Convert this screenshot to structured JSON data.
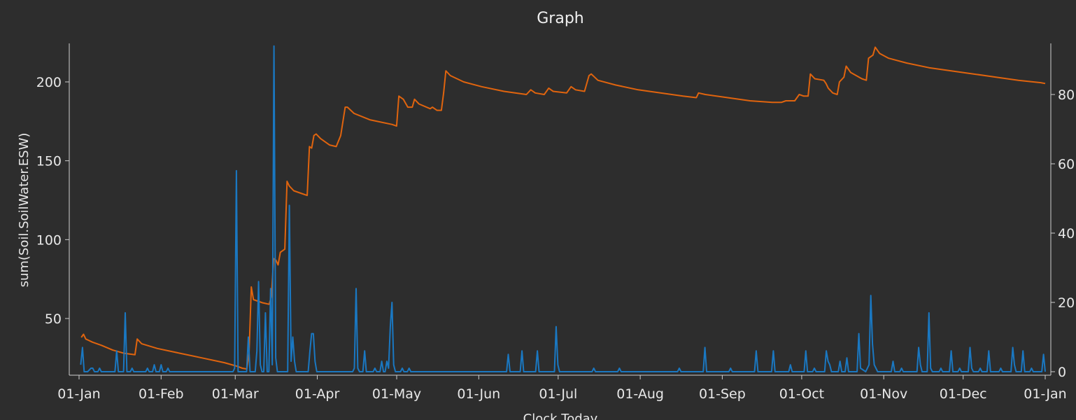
{
  "window": {
    "title": "Graph"
  },
  "chart_data": {
    "type": "line",
    "title": "Graph",
    "xlabel": "Clock.Today",
    "ylabel": "sum(Soil.SoilWater.ESW)",
    "y2label": "",
    "xlim": [
      "01-Jan",
      "01-Jan"
    ],
    "ylim": [
      15,
      225
    ],
    "y2lim": [
      0,
      95
    ],
    "x_tick_labels": [
      "01-Jan",
      "01-Feb",
      "01-Mar",
      "01-Apr",
      "01-May",
      "01-Jun",
      "01-Jul",
      "01-Aug",
      "01-Sep",
      "01-Oct",
      "01-Nov",
      "01-Dec",
      "01-Jan"
    ],
    "y_ticks": [
      50,
      100,
      150,
      200
    ],
    "y2_ticks": [
      0,
      20,
      40,
      60,
      80
    ],
    "grid": false,
    "legend": "none",
    "colors": {
      "esw": "#e0640e",
      "rain": "#1a78c2"
    },
    "series": [
      {
        "axis": "left",
        "color": "#e0640e",
        "points": [
          [
            1,
            38
          ],
          [
            2,
            40
          ],
          [
            3,
            37
          ],
          [
            6,
            35
          ],
          [
            10,
            33
          ],
          [
            15,
            30
          ],
          [
            20,
            28
          ],
          [
            25,
            27
          ],
          [
            26,
            37
          ],
          [
            28,
            34
          ],
          [
            35,
            31
          ],
          [
            45,
            28
          ],
          [
            55,
            25
          ],
          [
            65,
            22
          ],
          [
            70,
            20
          ],
          [
            73,
            18.5
          ],
          [
            75,
            18
          ],
          [
            76,
            28
          ],
          [
            77,
            70
          ],
          [
            78,
            62
          ],
          [
            82,
            60
          ],
          [
            85,
            59
          ],
          [
            86,
            64
          ],
          [
            87,
            88
          ],
          [
            88,
            87
          ],
          [
            89,
            84
          ],
          [
            90,
            92
          ],
          [
            92,
            94
          ],
          [
            93,
            137
          ],
          [
            94,
            134
          ],
          [
            96,
            131
          ],
          [
            100,
            129
          ],
          [
            102,
            128
          ],
          [
            103,
            159
          ],
          [
            104,
            158
          ],
          [
            105,
            166
          ],
          [
            106,
            167
          ],
          [
            108,
            164
          ],
          [
            112,
            160
          ],
          [
            115,
            159
          ],
          [
            117,
            166
          ],
          [
            119,
            184
          ],
          [
            120,
            184
          ],
          [
            123,
            180
          ],
          [
            130,
            176
          ],
          [
            140,
            173
          ],
          [
            142,
            172
          ],
          [
            143,
            191
          ],
          [
            145,
            189
          ],
          [
            147,
            184
          ],
          [
            149,
            184
          ],
          [
            150,
            189
          ],
          [
            152,
            186
          ],
          [
            157,
            183
          ],
          [
            158,
            184
          ],
          [
            160,
            182
          ],
          [
            162,
            182
          ],
          [
            163,
            193
          ],
          [
            164,
            207
          ],
          [
            166,
            204
          ],
          [
            172,
            200
          ],
          [
            180,
            197
          ],
          [
            190,
            194
          ],
          [
            200,
            192
          ],
          [
            202,
            195
          ],
          [
            204,
            193
          ],
          [
            208,
            192
          ],
          [
            210,
            196
          ],
          [
            212,
            194
          ],
          [
            218,
            193
          ],
          [
            220,
            197
          ],
          [
            222,
            195
          ],
          [
            226,
            194
          ],
          [
            228,
            204
          ],
          [
            229,
            205
          ],
          [
            232,
            201
          ],
          [
            240,
            198
          ],
          [
            250,
            195
          ],
          [
            260,
            193
          ],
          [
            270,
            191
          ],
          [
            276,
            190
          ],
          [
            277,
            193
          ],
          [
            280,
            192
          ],
          [
            290,
            190
          ],
          [
            300,
            188
          ],
          [
            310,
            187
          ],
          [
            314,
            187
          ],
          [
            316,
            188
          ],
          [
            320,
            188
          ],
          [
            322,
            192
          ],
          [
            324,
            191
          ],
          [
            326,
            191
          ],
          [
            327,
            205
          ],
          [
            329,
            202
          ],
          [
            333,
            201
          ],
          [
            334,
            199
          ],
          [
            335,
            196
          ],
          [
            337,
            193
          ],
          [
            339,
            192
          ],
          [
            340,
            200
          ],
          [
            342,
            203
          ],
          [
            343,
            210
          ],
          [
            345,
            206
          ],
          [
            350,
            202
          ],
          [
            352,
            201
          ],
          [
            353,
            215
          ],
          [
            355,
            217
          ],
          [
            356,
            222
          ],
          [
            358,
            218
          ],
          [
            362,
            215
          ],
          [
            370,
            212
          ],
          [
            380,
            209
          ],
          [
            390,
            207
          ],
          [
            400,
            205
          ],
          [
            410,
            203
          ],
          [
            420,
            201
          ],
          [
            430,
            199.5
          ],
          [
            432,
            199
          ]
        ]
      },
      {
        "axis": "right",
        "color": "#1a78c2",
        "points": [
          [
            1,
            2
          ],
          [
            2,
            7
          ],
          [
            3,
            0
          ],
          [
            5,
            0
          ],
          [
            7,
            1
          ],
          [
            8,
            1
          ],
          [
            9,
            0
          ],
          [
            11,
            0
          ],
          [
            12,
            1
          ],
          [
            13,
            0
          ],
          [
            21,
            0
          ],
          [
            22,
            6
          ],
          [
            23,
            0
          ],
          [
            26,
            0
          ],
          [
            27,
            17
          ],
          [
            28,
            0
          ],
          [
            30,
            0
          ],
          [
            31,
            1
          ],
          [
            32,
            0
          ],
          [
            39,
            0
          ],
          [
            40,
            1
          ],
          [
            41,
            0
          ],
          [
            43,
            0
          ],
          [
            44,
            2
          ],
          [
            45,
            0
          ],
          [
            47,
            0
          ],
          [
            48,
            2
          ],
          [
            49,
            0
          ],
          [
            51,
            0
          ],
          [
            52,
            1
          ],
          [
            53,
            0
          ],
          [
            90,
            0
          ],
          [
            91,
            1
          ],
          [
            92,
            58
          ],
          [
            93,
            0
          ],
          [
            98,
            0
          ],
          [
            99,
            10
          ],
          [
            100,
            0
          ],
          [
            103,
            0
          ],
          [
            104,
            6
          ],
          [
            105,
            26
          ],
          [
            106,
            2
          ],
          [
            107,
            0
          ],
          [
            108,
            0
          ],
          [
            109,
            17
          ],
          [
            110,
            0
          ],
          [
            111,
            0
          ],
          [
            112,
            24
          ],
          [
            113,
            2
          ],
          [
            114,
            94
          ],
          [
            115,
            4
          ],
          [
            116,
            0
          ],
          [
            122,
            0
          ],
          [
            123,
            48
          ],
          [
            124,
            3
          ],
          [
            125,
            10
          ],
          [
            126,
            3
          ],
          [
            127,
            0
          ],
          [
            134,
            0
          ],
          [
            135,
            6
          ],
          [
            136,
            11
          ],
          [
            137,
            11
          ],
          [
            138,
            3
          ],
          [
            139,
            0
          ],
          [
            160,
            0
          ],
          [
            161,
            1
          ],
          [
            162,
            24
          ],
          [
            163,
            1
          ],
          [
            164,
            0
          ],
          [
            166,
            0
          ],
          [
            167,
            6
          ],
          [
            168,
            0
          ],
          [
            172,
            0
          ],
          [
            173,
            1
          ],
          [
            174,
            0
          ],
          [
            176,
            0
          ],
          [
            177,
            3
          ],
          [
            178,
            0
          ],
          [
            179,
            0
          ],
          [
            180,
            3
          ],
          [
            181,
            1
          ],
          [
            182,
            13
          ],
          [
            183,
            20
          ],
          [
            184,
            2
          ],
          [
            185,
            0
          ],
          [
            188,
            0
          ],
          [
            189,
            1
          ],
          [
            190,
            0
          ],
          [
            192,
            0
          ],
          [
            193,
            1
          ],
          [
            194,
            0
          ],
          [
            250,
            0
          ],
          [
            251,
            5
          ],
          [
            252,
            0
          ],
          [
            258,
            0
          ],
          [
            259,
            6
          ],
          [
            260,
            0
          ],
          [
            267,
            0
          ],
          [
            268,
            6
          ],
          [
            269,
            0
          ],
          [
            278,
            0
          ],
          [
            279,
            13
          ],
          [
            280,
            2
          ],
          [
            281,
            0
          ],
          [
            300,
            0
          ],
          [
            301,
            1
          ],
          [
            302,
            0
          ],
          [
            315,
            0
          ],
          [
            316,
            1
          ],
          [
            317,
            0
          ],
          [
            350,
            0
          ],
          [
            351,
            1
          ],
          [
            352,
            0
          ],
          [
            365,
            0
          ],
          [
            366,
            7
          ],
          [
            367,
            0
          ],
          [
            380,
            0
          ],
          [
            381,
            1
          ],
          [
            382,
            0
          ],
          [
            395,
            0
          ],
          [
            396,
            6
          ],
          [
            397,
            0
          ],
          [
            405,
            0
          ],
          [
            406,
            6
          ],
          [
            407,
            0
          ],
          [
            415,
            0
          ],
          [
            416,
            2
          ],
          [
            417,
            0
          ],
          [
            424,
            0
          ],
          [
            425,
            6
          ],
          [
            426,
            0
          ],
          [
            429,
            0
          ],
          [
            430,
            1
          ],
          [
            431,
            0
          ],
          [
            436,
            0
          ],
          [
            437,
            6
          ],
          [
            438,
            3
          ],
          [
            439,
            2
          ],
          [
            440,
            0
          ],
          [
            444,
            0
          ],
          [
            445,
            3
          ],
          [
            446,
            0
          ],
          [
            448,
            0
          ],
          [
            449,
            4
          ],
          [
            450,
            0
          ],
          [
            455,
            0
          ],
          [
            456,
            11
          ],
          [
            457,
            1
          ],
          [
            460,
            0
          ],
          [
            462,
            2
          ],
          [
            463,
            22
          ],
          [
            464,
            8
          ],
          [
            465,
            2
          ],
          [
            467,
            0
          ],
          [
            475,
            0
          ],
          [
            476,
            3
          ],
          [
            477,
            0
          ],
          [
            480,
            0
          ],
          [
            481,
            1
          ],
          [
            482,
            0
          ],
          [
            490,
            0
          ],
          [
            491,
            7
          ],
          [
            492,
            2
          ],
          [
            493,
            0
          ],
          [
            496,
            0
          ],
          [
            497,
            17
          ],
          [
            498,
            1
          ],
          [
            499,
            0
          ],
          [
            503,
            0
          ],
          [
            504,
            1
          ],
          [
            505,
            0
          ],
          [
            509,
            0
          ],
          [
            510,
            6
          ],
          [
            511,
            0
          ],
          [
            514,
            0
          ],
          [
            515,
            1
          ],
          [
            516,
            0
          ],
          [
            520,
            0
          ],
          [
            521,
            7
          ],
          [
            522,
            1
          ],
          [
            523,
            0
          ],
          [
            526,
            0
          ],
          [
            527,
            1
          ],
          [
            528,
            0
          ],
          [
            531,
            0
          ],
          [
            532,
            6
          ],
          [
            533,
            0
          ],
          [
            538,
            0
          ],
          [
            539,
            1
          ],
          [
            540,
            0
          ],
          [
            545,
            0
          ],
          [
            546,
            7
          ],
          [
            547,
            2
          ],
          [
            548,
            0
          ],
          [
            551,
            0
          ],
          [
            552,
            6
          ],
          [
            553,
            0
          ],
          [
            556,
            0
          ],
          [
            557,
            1
          ],
          [
            558,
            0
          ],
          [
            563,
            0
          ],
          [
            564,
            5
          ],
          [
            565,
            0
          ]
        ]
      }
    ]
  }
}
